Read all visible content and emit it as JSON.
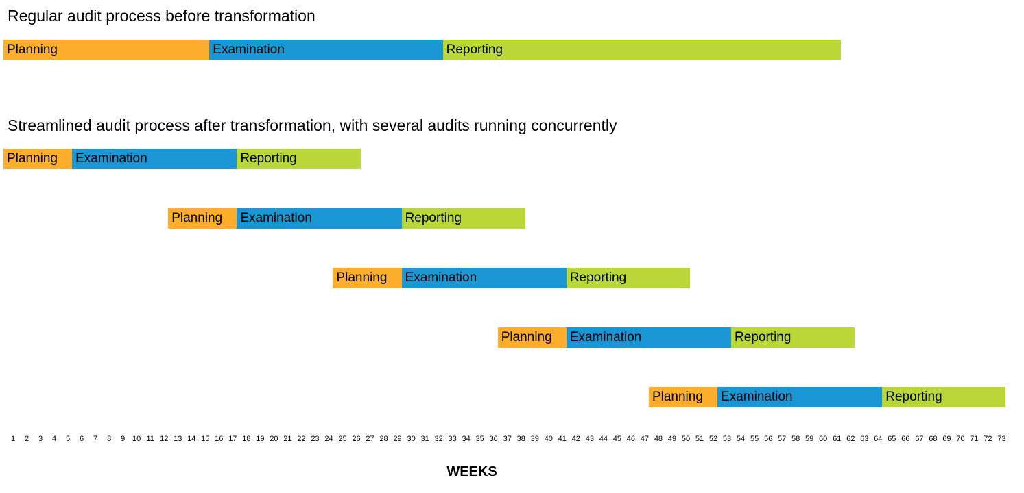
{
  "headings": {
    "before": "Regular audit process before transformation",
    "after": "Streamlined audit process after transformation, with several audits running concurrently"
  },
  "colors": {
    "Planning": "#FBAD2B",
    "Examination": "#1B96D4",
    "Reporting": "#BAD73A"
  },
  "chart_data": {
    "type": "bar",
    "orientation": "horizontal-gantt",
    "xlabel": "WEEKS",
    "x_ticks": [
      1,
      2,
      3,
      4,
      5,
      6,
      7,
      8,
      9,
      10,
      11,
      12,
      13,
      14,
      15,
      16,
      17,
      18,
      19,
      20,
      21,
      22,
      23,
      24,
      25,
      26,
      27,
      28,
      29,
      30,
      31,
      32,
      33,
      34,
      35,
      36,
      37,
      38,
      39,
      40,
      41,
      42,
      43,
      44,
      45,
      46,
      47,
      48,
      49,
      50,
      51,
      52,
      53,
      54,
      55,
      56,
      57,
      58,
      59,
      60,
      61,
      62,
      63,
      64,
      65,
      66,
      67,
      68,
      69,
      70,
      71,
      72,
      73
    ],
    "series": [
      {
        "name": "Planning"
      },
      {
        "name": "Examination"
      },
      {
        "name": "Reporting"
      }
    ],
    "rows": [
      {
        "group": "before",
        "phases": [
          {
            "phase": "Planning",
            "start": 1,
            "end": 15
          },
          {
            "phase": "Examination",
            "start": 16,
            "end": 32
          },
          {
            "phase": "Reporting",
            "start": 33,
            "end": 61
          }
        ]
      },
      {
        "group": "after",
        "phases": [
          {
            "phase": "Planning",
            "start": 1,
            "end": 5
          },
          {
            "phase": "Examination",
            "start": 6,
            "end": 17
          },
          {
            "phase": "Reporting",
            "start": 18,
            "end": 26
          }
        ]
      },
      {
        "group": "after",
        "phases": [
          {
            "phase": "Planning",
            "start": 13,
            "end": 17
          },
          {
            "phase": "Examination",
            "start": 18,
            "end": 29
          },
          {
            "phase": "Reporting",
            "start": 30,
            "end": 38
          }
        ]
      },
      {
        "group": "after",
        "phases": [
          {
            "phase": "Planning",
            "start": 25,
            "end": 29
          },
          {
            "phase": "Examination",
            "start": 30,
            "end": 41
          },
          {
            "phase": "Reporting",
            "start": 42,
            "end": 50
          }
        ]
      },
      {
        "group": "after",
        "phases": [
          {
            "phase": "Planning",
            "start": 37,
            "end": 41
          },
          {
            "phase": "Examination",
            "start": 42,
            "end": 53
          },
          {
            "phase": "Reporting",
            "start": 54,
            "end": 62
          }
        ]
      },
      {
        "group": "after",
        "phases": [
          {
            "phase": "Planning",
            "start": 48,
            "end": 52
          },
          {
            "phase": "Examination",
            "start": 53,
            "end": 64
          },
          {
            "phase": "Reporting",
            "start": 65,
            "end": 73
          }
        ]
      }
    ]
  }
}
